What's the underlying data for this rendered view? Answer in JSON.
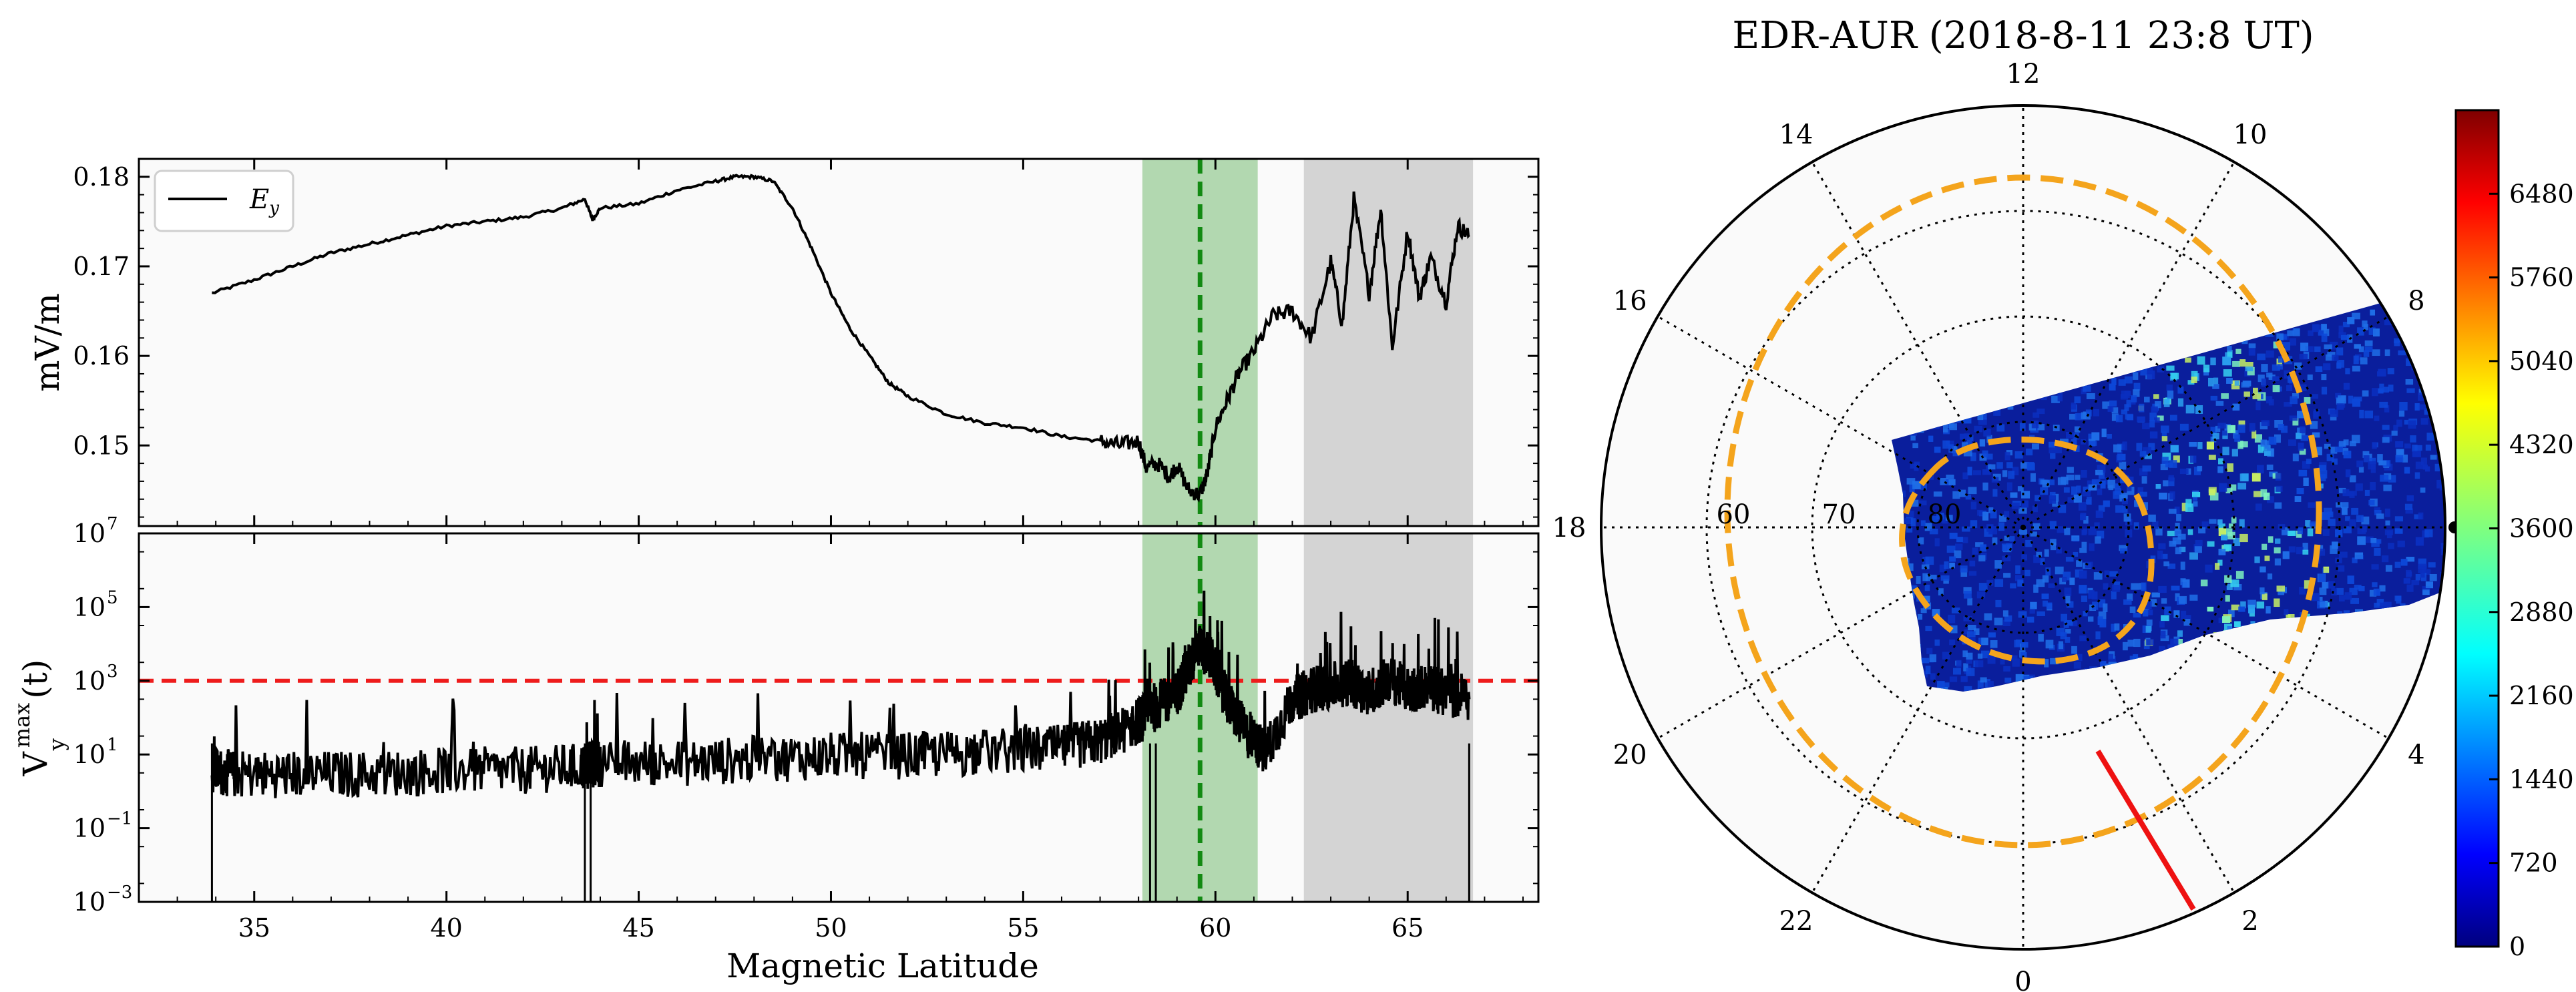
{
  "chart_data": [
    {
      "type": "line",
      "panel": "top",
      "ylabel": "mV/m",
      "xlim": [
        32,
        68.4
      ],
      "ylim": [
        0.141,
        0.182
      ],
      "yticks": [
        "0.15",
        "0.16",
        "0.17",
        "0.18"
      ],
      "ytick_values": [
        0.15,
        0.16,
        0.17,
        0.18
      ],
      "legend": [
        "E",
        "y"
      ],
      "series": [
        {
          "name": "Ey",
          "x": [
            33.9,
            35,
            36,
            37,
            38,
            39,
            40,
            41,
            42,
            43,
            43.6,
            43.8,
            44,
            45,
            46,
            47,
            47.5,
            48,
            48.5,
            49,
            49.5,
            50,
            50.5,
            51,
            51.5,
            52,
            53,
            54,
            55,
            56,
            57,
            57.5,
            58,
            58.2,
            58.5,
            58.8,
            59,
            59.3,
            59.6,
            59.8,
            60,
            60.3,
            60.6,
            61,
            61.5,
            62,
            62.5,
            63,
            63.3,
            63.6,
            64,
            64.3,
            64.6,
            65,
            65.3,
            65.6,
            66,
            66.3,
            66.6
          ],
          "y": [
            0.167,
            0.1685,
            0.17,
            0.1715,
            0.1725,
            0.1735,
            0.1745,
            0.175,
            0.1755,
            0.1765,
            0.1775,
            0.1752,
            0.1765,
            0.177,
            0.1785,
            0.1795,
            0.18,
            0.18,
            0.1795,
            0.1765,
            0.172,
            0.167,
            0.163,
            0.16,
            0.157,
            0.1555,
            0.1535,
            0.1525,
            0.152,
            0.151,
            0.1505,
            0.15,
            0.1505,
            0.1475,
            0.148,
            0.1465,
            0.1478,
            0.145,
            0.1445,
            0.147,
            0.152,
            0.155,
            0.158,
            0.1605,
            0.1645,
            0.165,
            0.162,
            0.1705,
            0.1635,
            0.1775,
            0.167,
            0.1765,
            0.161,
            0.174,
            0.1665,
            0.171,
            0.166,
            0.1745,
            0.1735
          ]
        }
      ],
      "shaded_green": [
        58.1,
        61.1
      ],
      "shaded_gray": [
        62.3,
        66.7
      ],
      "vline": 59.6
    },
    {
      "type": "line",
      "panel": "bottom",
      "ylabel": "V",
      "ylabel_sup": "max",
      "ylabel_sub": "y",
      "ylabel_suffix": "(t)",
      "xlabel": "Magnetic Latitude",
      "xlim": [
        32,
        68.4
      ],
      "ylim_log10": [
        -3,
        7
      ],
      "yticks": [
        "10",
        "10",
        "10",
        "10",
        "10",
        "10"
      ],
      "ytick_exponents": [
        "−3",
        "−1",
        "1",
        "3",
        "5",
        "7"
      ],
      "ytick_values_log10": [
        -3,
        -1,
        1,
        3,
        5,
        7
      ],
      "xticks": [
        "35",
        "40",
        "45",
        "50",
        "55",
        "60",
        "65"
      ],
      "xtick_values": [
        35,
        40,
        45,
        50,
        55,
        60,
        65
      ],
      "threshold_log10": 3,
      "series": [
        {
          "name": "Vymax(t)",
          "x": [
            33.9,
            34.5,
            36,
            38,
            40,
            42,
            43.5,
            44,
            46,
            48,
            50,
            52,
            54,
            56,
            57,
            57.8,
            58.2,
            58.6,
            59,
            59.3,
            59.6,
            59.9,
            60.3,
            60.8,
            61.3,
            62,
            62.5,
            63,
            63.5,
            64,
            64.5,
            65,
            65.5,
            66,
            66.6
          ],
          "y_log10": [
            0.5,
            0.4,
            0.4,
            0.4,
            0.5,
            0.5,
            0.6,
            0.7,
            0.7,
            0.8,
            0.9,
            0.9,
            1.0,
            1.1,
            1.3,
            1.7,
            2.0,
            2.3,
            2.6,
            3.3,
            3.9,
            3.5,
            2.4,
            1.5,
            1.0,
            2.4,
            2.7,
            2.8,
            2.9,
            2.6,
            3.0,
            2.7,
            2.8,
            2.6,
            2.5
          ]
        }
      ],
      "dropouts": [
        33.9,
        43.6,
        43.75,
        58.3,
        58.45,
        66.6
      ],
      "shaded_green": [
        58.1,
        61.1
      ],
      "shaded_gray": [
        62.3,
        66.7
      ],
      "vline": 59.6
    },
    {
      "type": "heatmap",
      "panel": "polar",
      "title": "EDR-AUR (2018-8-11 23:8 UT)",
      "mlt_labels": [
        "12",
        "14",
        "10",
        "16",
        "8",
        "18",
        "20",
        "4",
        "22",
        "2",
        "0"
      ],
      "mlt_values": [
        12,
        14,
        10,
        16,
        8,
        18,
        20,
        4,
        22,
        2,
        0
      ],
      "lat_labels": [
        "60",
        "70",
        "80"
      ],
      "lat_values": [
        60,
        70,
        80
      ],
      "colorbar_ticks": [
        "0",
        "720",
        "1440",
        "2160",
        "2880",
        "3600",
        "4320",
        "5040",
        "5760",
        "6480"
      ],
      "colorbar_values": [
        0,
        720,
        1440,
        2160,
        2880,
        3600,
        4320,
        5040,
        5760,
        6480
      ],
      "colorbar_max": 7200,
      "colors": {
        "green_band": "#b2d8b0",
        "gray_band": "#d4d4d4",
        "vline": "#138a13",
        "threshold": "#ee1c1c",
        "oval": "#f4a41c",
        "track": "#ee1111",
        "aurora_base": "#0a1e9c"
      }
    }
  ]
}
